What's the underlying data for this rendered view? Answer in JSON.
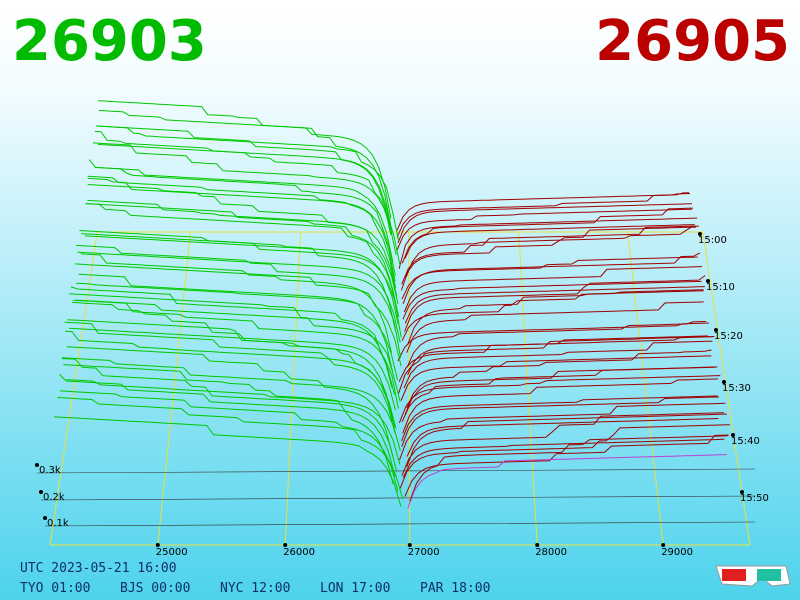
{
  "header": {
    "bid": "26903",
    "ask": "26905"
  },
  "axes": {
    "price_ticks": [
      "25000",
      "26000",
      "27000",
      "28000",
      "29000"
    ],
    "depth_ticks": [
      "0.3k",
      "0.2k",
      "0.1k"
    ],
    "time_ticks": [
      "15:00",
      "15:10",
      "15:20",
      "15:30",
      "15:40",
      "15:50"
    ]
  },
  "footer": {
    "utc": "UTC 2023-05-21 16:00",
    "zones": [
      "TYO 01:00",
      "BJS 00:00",
      "NYC 12:00",
      "LON 17:00",
      "PAR 18:00"
    ]
  }
}
